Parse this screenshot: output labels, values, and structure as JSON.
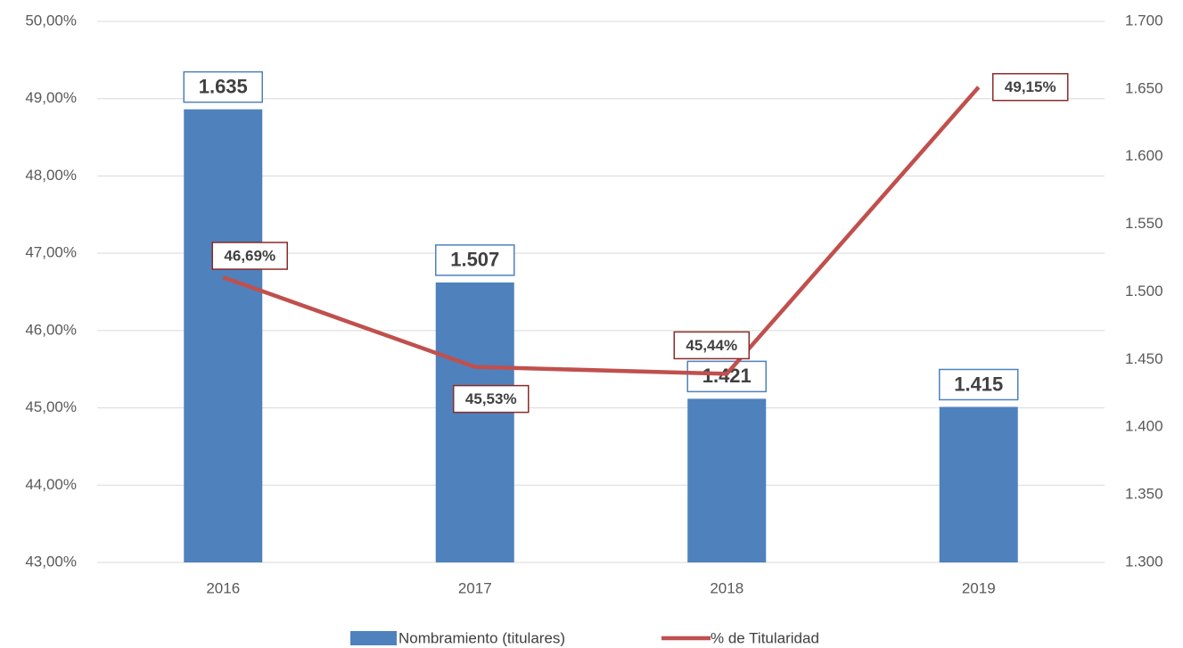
{
  "chart_data": {
    "type": "bar_line",
    "categories": [
      "2016",
      "2017",
      "2018",
      "2019"
    ],
    "series": [
      {
        "name": "Nombramiento (titulares)",
        "type": "bar",
        "axis": "y2",
        "color": "#4f81bd",
        "values": [
          1635,
          1507,
          1421,
          1415
        ],
        "value_labels": [
          "1.635",
          "1.507",
          "1.421",
          "1.415"
        ]
      },
      {
        "name": "% de Titularidad",
        "type": "line",
        "axis": "y",
        "color": "#c0504d",
        "values": [
          46.69,
          45.53,
          45.44,
          49.15
        ],
        "value_labels": [
          "46,69%",
          "45,53%",
          "45,44%",
          "49,15%"
        ]
      }
    ],
    "ylim": [
      43,
      50
    ],
    "yticks": [
      {
        "value": 43,
        "label": "43,00%"
      },
      {
        "value": 44,
        "label": "44,00%"
      },
      {
        "value": 45,
        "label": "45,00%"
      },
      {
        "value": 46,
        "label": "46,00%"
      },
      {
        "value": 47,
        "label": "47,00%"
      },
      {
        "value": 48,
        "label": "48,00%"
      },
      {
        "value": 49,
        "label": "49,00%"
      },
      {
        "value": 50,
        "label": "50,00%"
      }
    ],
    "y2lim": [
      1300,
      1700
    ],
    "y2ticks": [
      {
        "value": 1300,
        "label": "1.300"
      },
      {
        "value": 1350,
        "label": "1.350"
      },
      {
        "value": 1400,
        "label": "1.400"
      },
      {
        "value": 1450,
        "label": "1.450"
      },
      {
        "value": 1500,
        "label": "1.500"
      },
      {
        "value": 1550,
        "label": "1.550"
      },
      {
        "value": 1600,
        "label": "1.600"
      },
      {
        "value": 1650,
        "label": "1.650"
      },
      {
        "value": 1700,
        "label": "1.700"
      }
    ],
    "grid": true,
    "legend": "bottom"
  }
}
